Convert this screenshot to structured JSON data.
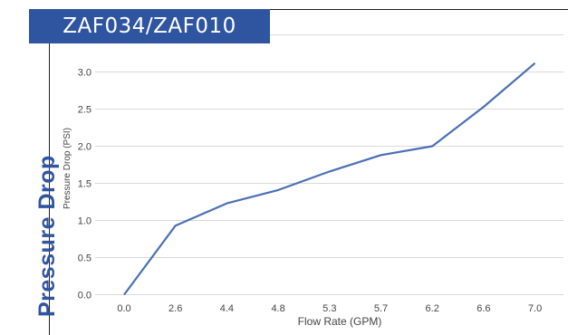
{
  "side_label": "Pressure Drop",
  "model_label": "ZAF034/ZAF010",
  "colors": {
    "accent": "#2f54a0",
    "line": "#4a6fb5",
    "grid": "#d9d9d9"
  },
  "chart_data": {
    "type": "line",
    "title": "",
    "xlabel": "Flow Rate (GPM)",
    "ylabel": "Pressure Drop (PSI)",
    "categories": [
      "0.0",
      "2.6",
      "4.4",
      "4.8",
      "5.3",
      "5.7",
      "6.2",
      "6.6",
      "7.0"
    ],
    "series": [
      {
        "values": [
          0.0,
          0.93,
          1.23,
          1.41,
          1.66,
          1.88,
          2.0,
          2.53,
          3.12
        ]
      }
    ],
    "yticks": [
      "0.0",
      "0.5",
      "1.0",
      "1.5",
      "2.0",
      "2.5",
      "3.0"
    ],
    "ylim": [
      0,
      3.5
    ],
    "grid": true,
    "legend": "none"
  }
}
